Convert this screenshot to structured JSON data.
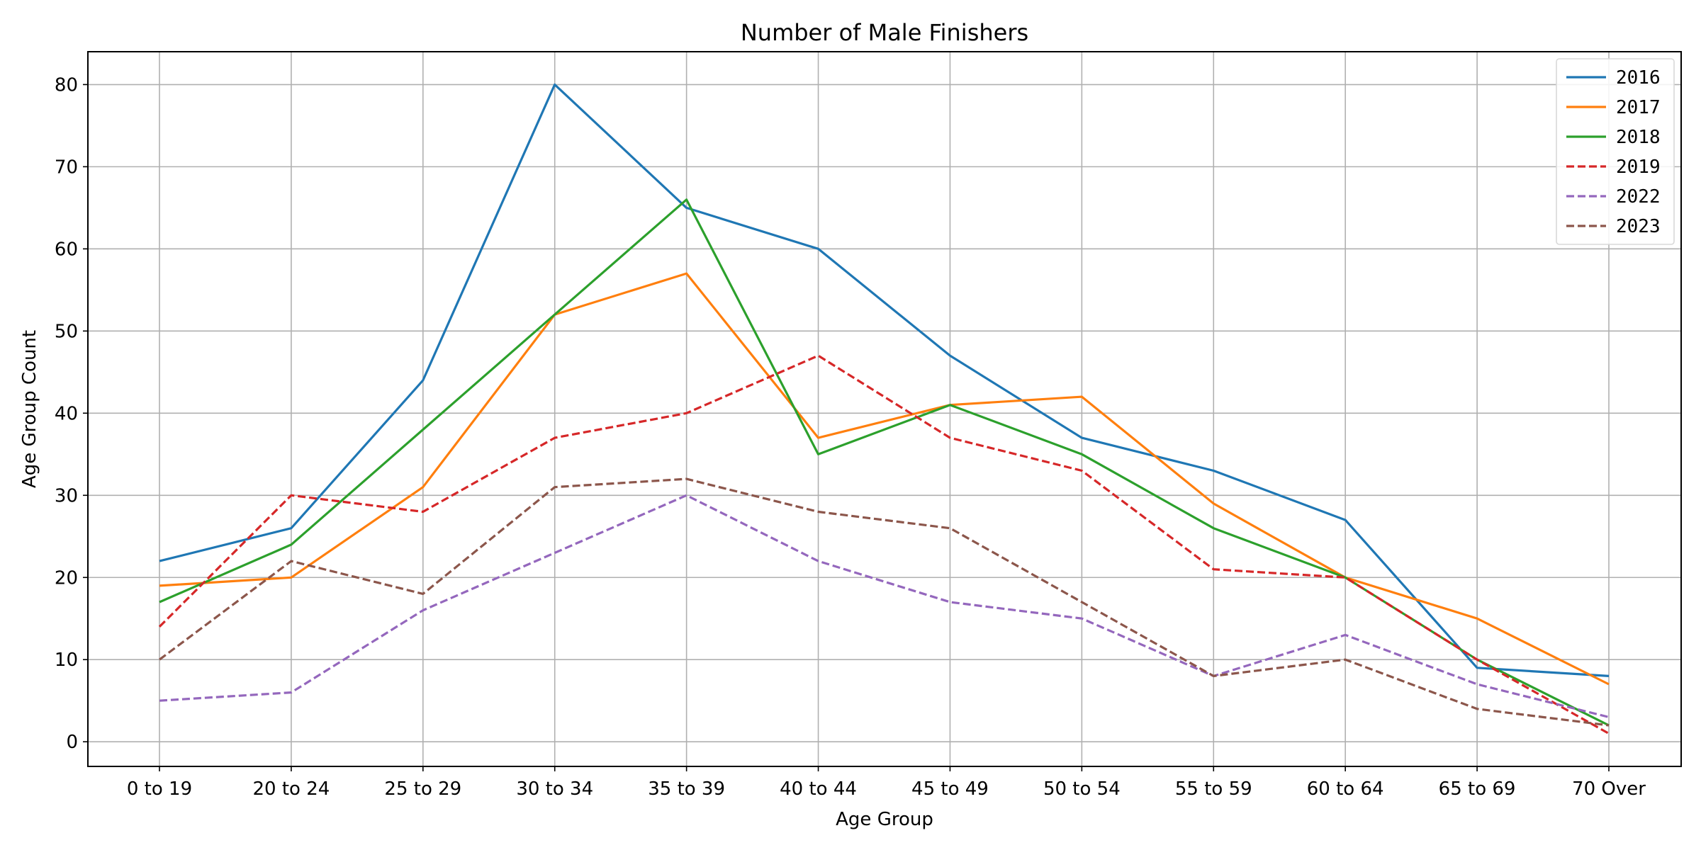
{
  "chart_data": {
    "type": "line",
    "title": "Number of Male Finishers",
    "xlabel": "Age Group",
    "ylabel": "Age Group Count",
    "categories": [
      "0 to 19",
      "20 to 24",
      "25 to 29",
      "30 to 34",
      "35 to 39",
      "40 to 44",
      "45 to 49",
      "50 to 54",
      "55 to 59",
      "60 to 64",
      "65 to 69",
      "70 Over"
    ],
    "ylim": [
      -3,
      84
    ],
    "yticks": [
      0,
      10,
      20,
      30,
      40,
      50,
      60,
      70,
      80
    ],
    "grid": true,
    "legend_position": "top-right",
    "series": [
      {
        "name": "2016",
        "color": "#1f77b4",
        "dash": "solid",
        "values": [
          22,
          26,
          44,
          80,
          65,
          60,
          47,
          37,
          33,
          27,
          9,
          8
        ]
      },
      {
        "name": "2017",
        "color": "#ff7f0e",
        "dash": "solid",
        "values": [
          19,
          20,
          31,
          52,
          57,
          37,
          41,
          42,
          29,
          20,
          15,
          7
        ]
      },
      {
        "name": "2018",
        "color": "#2ca02c",
        "dash": "solid",
        "values": [
          17,
          24,
          38,
          52,
          66,
          35,
          41,
          35,
          26,
          20,
          10,
          2
        ]
      },
      {
        "name": "2019",
        "color": "#d62728",
        "dash": "dashed",
        "values": [
          14,
          30,
          28,
          37,
          40,
          47,
          37,
          33,
          21,
          20,
          10,
          1
        ]
      },
      {
        "name": "2022",
        "color": "#9467bd",
        "dash": "dashed",
        "values": [
          5,
          6,
          16,
          23,
          30,
          22,
          17,
          15,
          8,
          13,
          7,
          3
        ]
      },
      {
        "name": "2023",
        "color": "#8c564b",
        "dash": "dashed",
        "values": [
          10,
          22,
          18,
          31,
          32,
          28,
          26,
          17,
          8,
          10,
          4,
          2
        ]
      }
    ]
  }
}
